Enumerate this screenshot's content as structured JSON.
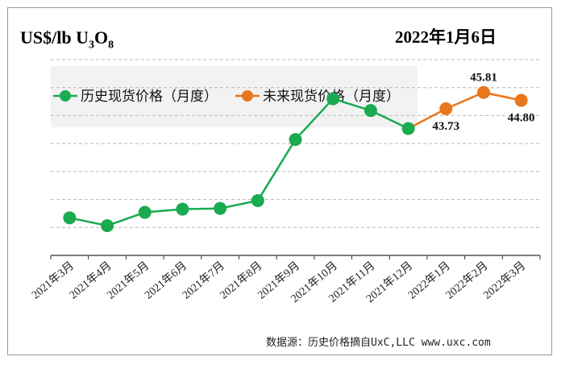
{
  "title": {
    "unit_prefix": "US$/lb U",
    "unit_sub1": "3",
    "unit_mid": "O",
    "unit_sub2": "8",
    "date": "2022年1月6日"
  },
  "source": "数据源：历史价格摘自UxC,LLC  www.uxc.com",
  "colors": {
    "historical": "#1aaa50",
    "future": "#e8761c",
    "grid": "#b8b8b8",
    "legend_bg": "#f2f2f2"
  },
  "chart_data": {
    "type": "line",
    "title": "US$/lb U3O8",
    "xlabel": "",
    "ylabel": "US$/lb U3O8",
    "ylim": [
      25,
      50
    ],
    "grid": true,
    "legend_position": "top-left",
    "categories": [
      "2021年3月",
      "2021年4月",
      "2021年5月",
      "2021年6月",
      "2021年7月",
      "2021年8月",
      "2021年9月",
      "2021年10月",
      "2021年11月",
      "2021年12月",
      "2022年1月",
      "2022年2月",
      "2022年3月"
    ],
    "series": [
      {
        "name": "历史现货价格（月度）",
        "color": "#1aaa50",
        "values": [
          29.8,
          28.8,
          30.5,
          30.9,
          31.0,
          32.0,
          39.8,
          45.0,
          43.5,
          41.2,
          null,
          null,
          null
        ]
      },
      {
        "name": "未来现货价格（月度）",
        "color": "#e8761c",
        "values": [
          null,
          null,
          null,
          null,
          null,
          null,
          null,
          null,
          null,
          41.2,
          43.73,
          45.81,
          44.8
        ]
      }
    ],
    "data_labels": [
      {
        "index": 10,
        "series": 1,
        "text": "43.73",
        "placement": "below"
      },
      {
        "index": 11,
        "series": 1,
        "text": "45.81",
        "placement": "above"
      },
      {
        "index": 12,
        "series": 1,
        "text": "44.80",
        "placement": "below"
      }
    ]
  }
}
